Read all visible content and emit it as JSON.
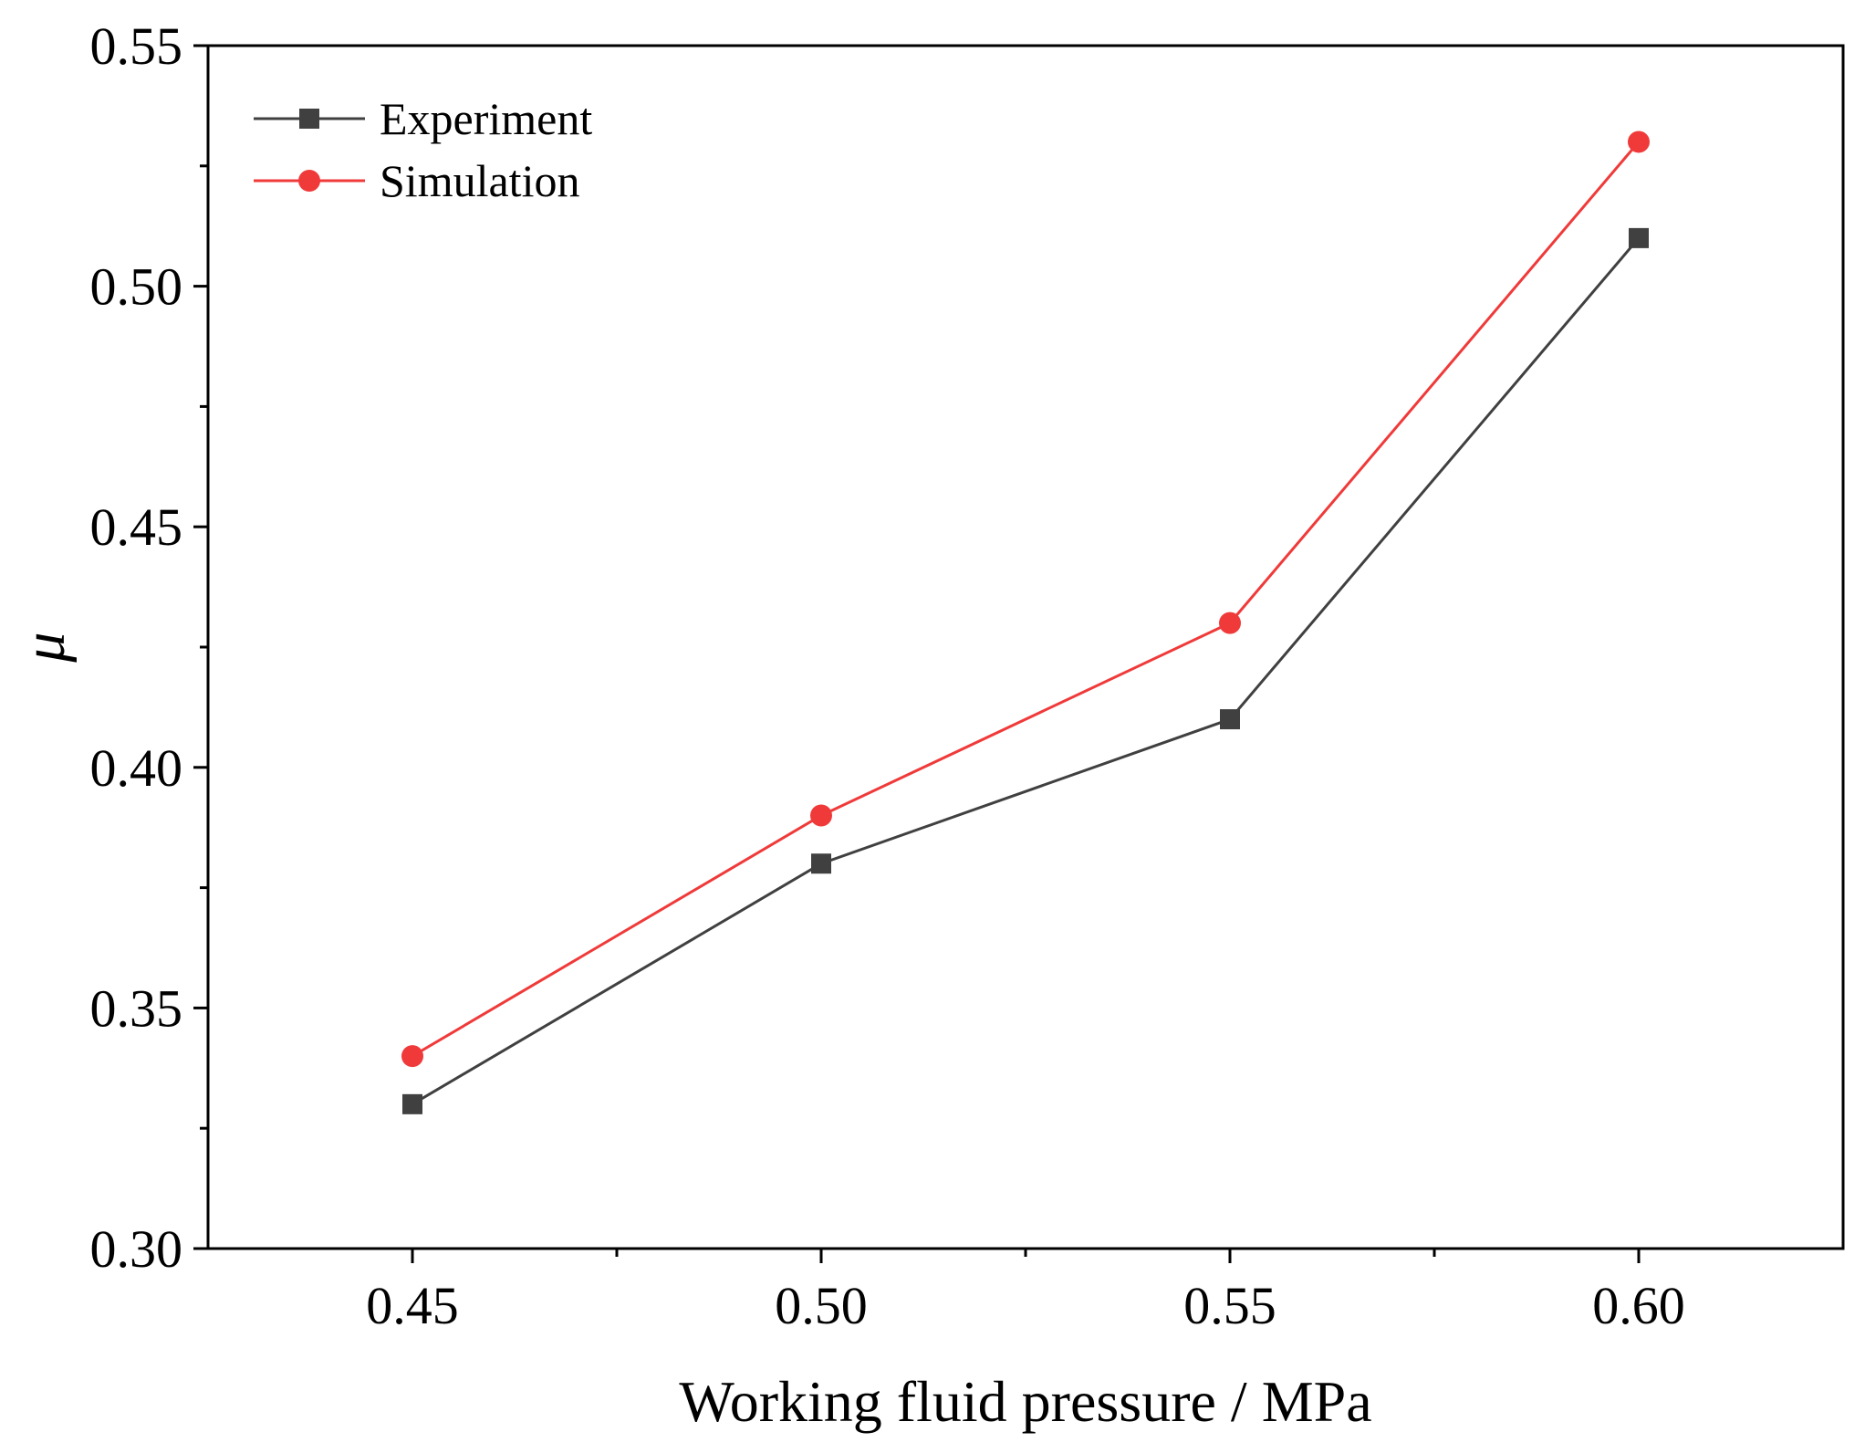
{
  "chart_data": {
    "type": "line",
    "title": "",
    "xlabel": "Working fluid pressure / MPa",
    "ylabel": "μ",
    "x": [
      0.45,
      0.5,
      0.55,
      0.6
    ],
    "x_tick_labels": [
      "0.45",
      "0.50",
      "0.55",
      "0.60"
    ],
    "xlim": [
      0.425,
      0.625
    ],
    "ylim": [
      0.3,
      0.55
    ],
    "y_ticks": [
      0.3,
      0.35,
      0.4,
      0.45,
      0.5,
      0.55
    ],
    "y_tick_labels": [
      "0.30",
      "0.35",
      "0.40",
      "0.45",
      "0.50",
      "0.55"
    ],
    "grid": false,
    "legend_position": "top-left",
    "series": [
      {
        "name": "Experiment",
        "values": [
          0.33,
          0.38,
          0.41,
          0.51
        ],
        "color": "#404040",
        "marker": "square"
      },
      {
        "name": "Simulation",
        "values": [
          0.34,
          0.39,
          0.43,
          0.53
        ],
        "color": "#f03a3a",
        "marker": "circle"
      }
    ]
  }
}
